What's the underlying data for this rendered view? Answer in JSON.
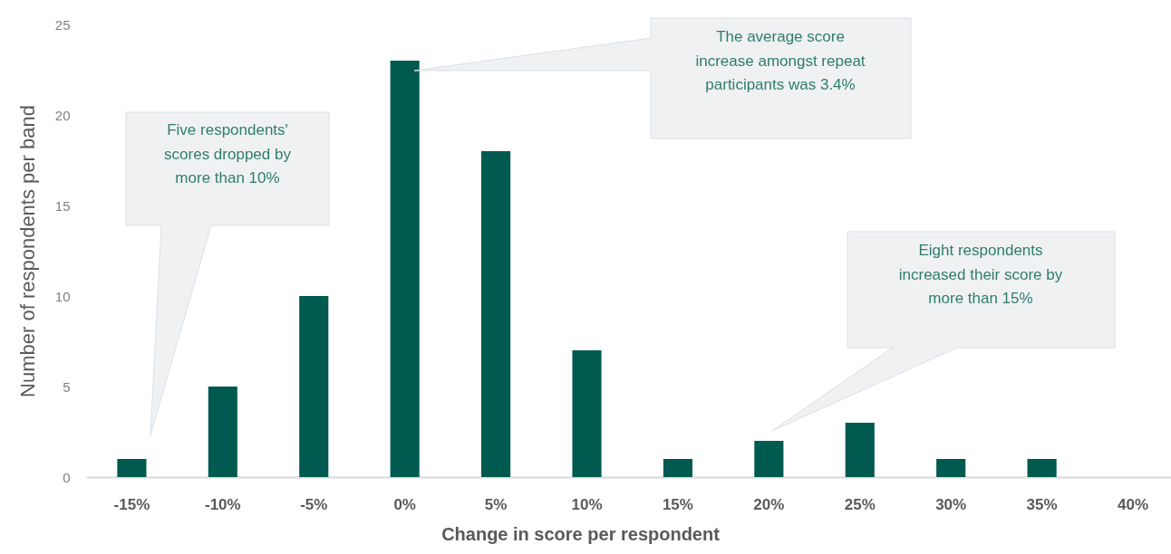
{
  "chart_data": {
    "type": "bar",
    "xlabel": "Change in score per respondent",
    "ylabel": "Number of respondents per band",
    "categories": [
      "-15%",
      "-10%",
      "-5%",
      "0%",
      "5%",
      "10%",
      "15%",
      "20%",
      "25%",
      "30%",
      "35%",
      "40%"
    ],
    "values": [
      1,
      5,
      10,
      23,
      18,
      7,
      1,
      2,
      3,
      1,
      1,
      0
    ],
    "color": "#005a50",
    "ylim": [
      0,
      25
    ],
    "yticks": [
      0,
      5,
      10,
      15,
      20,
      25
    ],
    "annotations": [
      "Five respondents' scores dropped by more than 10%",
      "The average score increase amongst repeat participants was 3.4%",
      "Eight respondents increased their score by more than 15%"
    ]
  }
}
